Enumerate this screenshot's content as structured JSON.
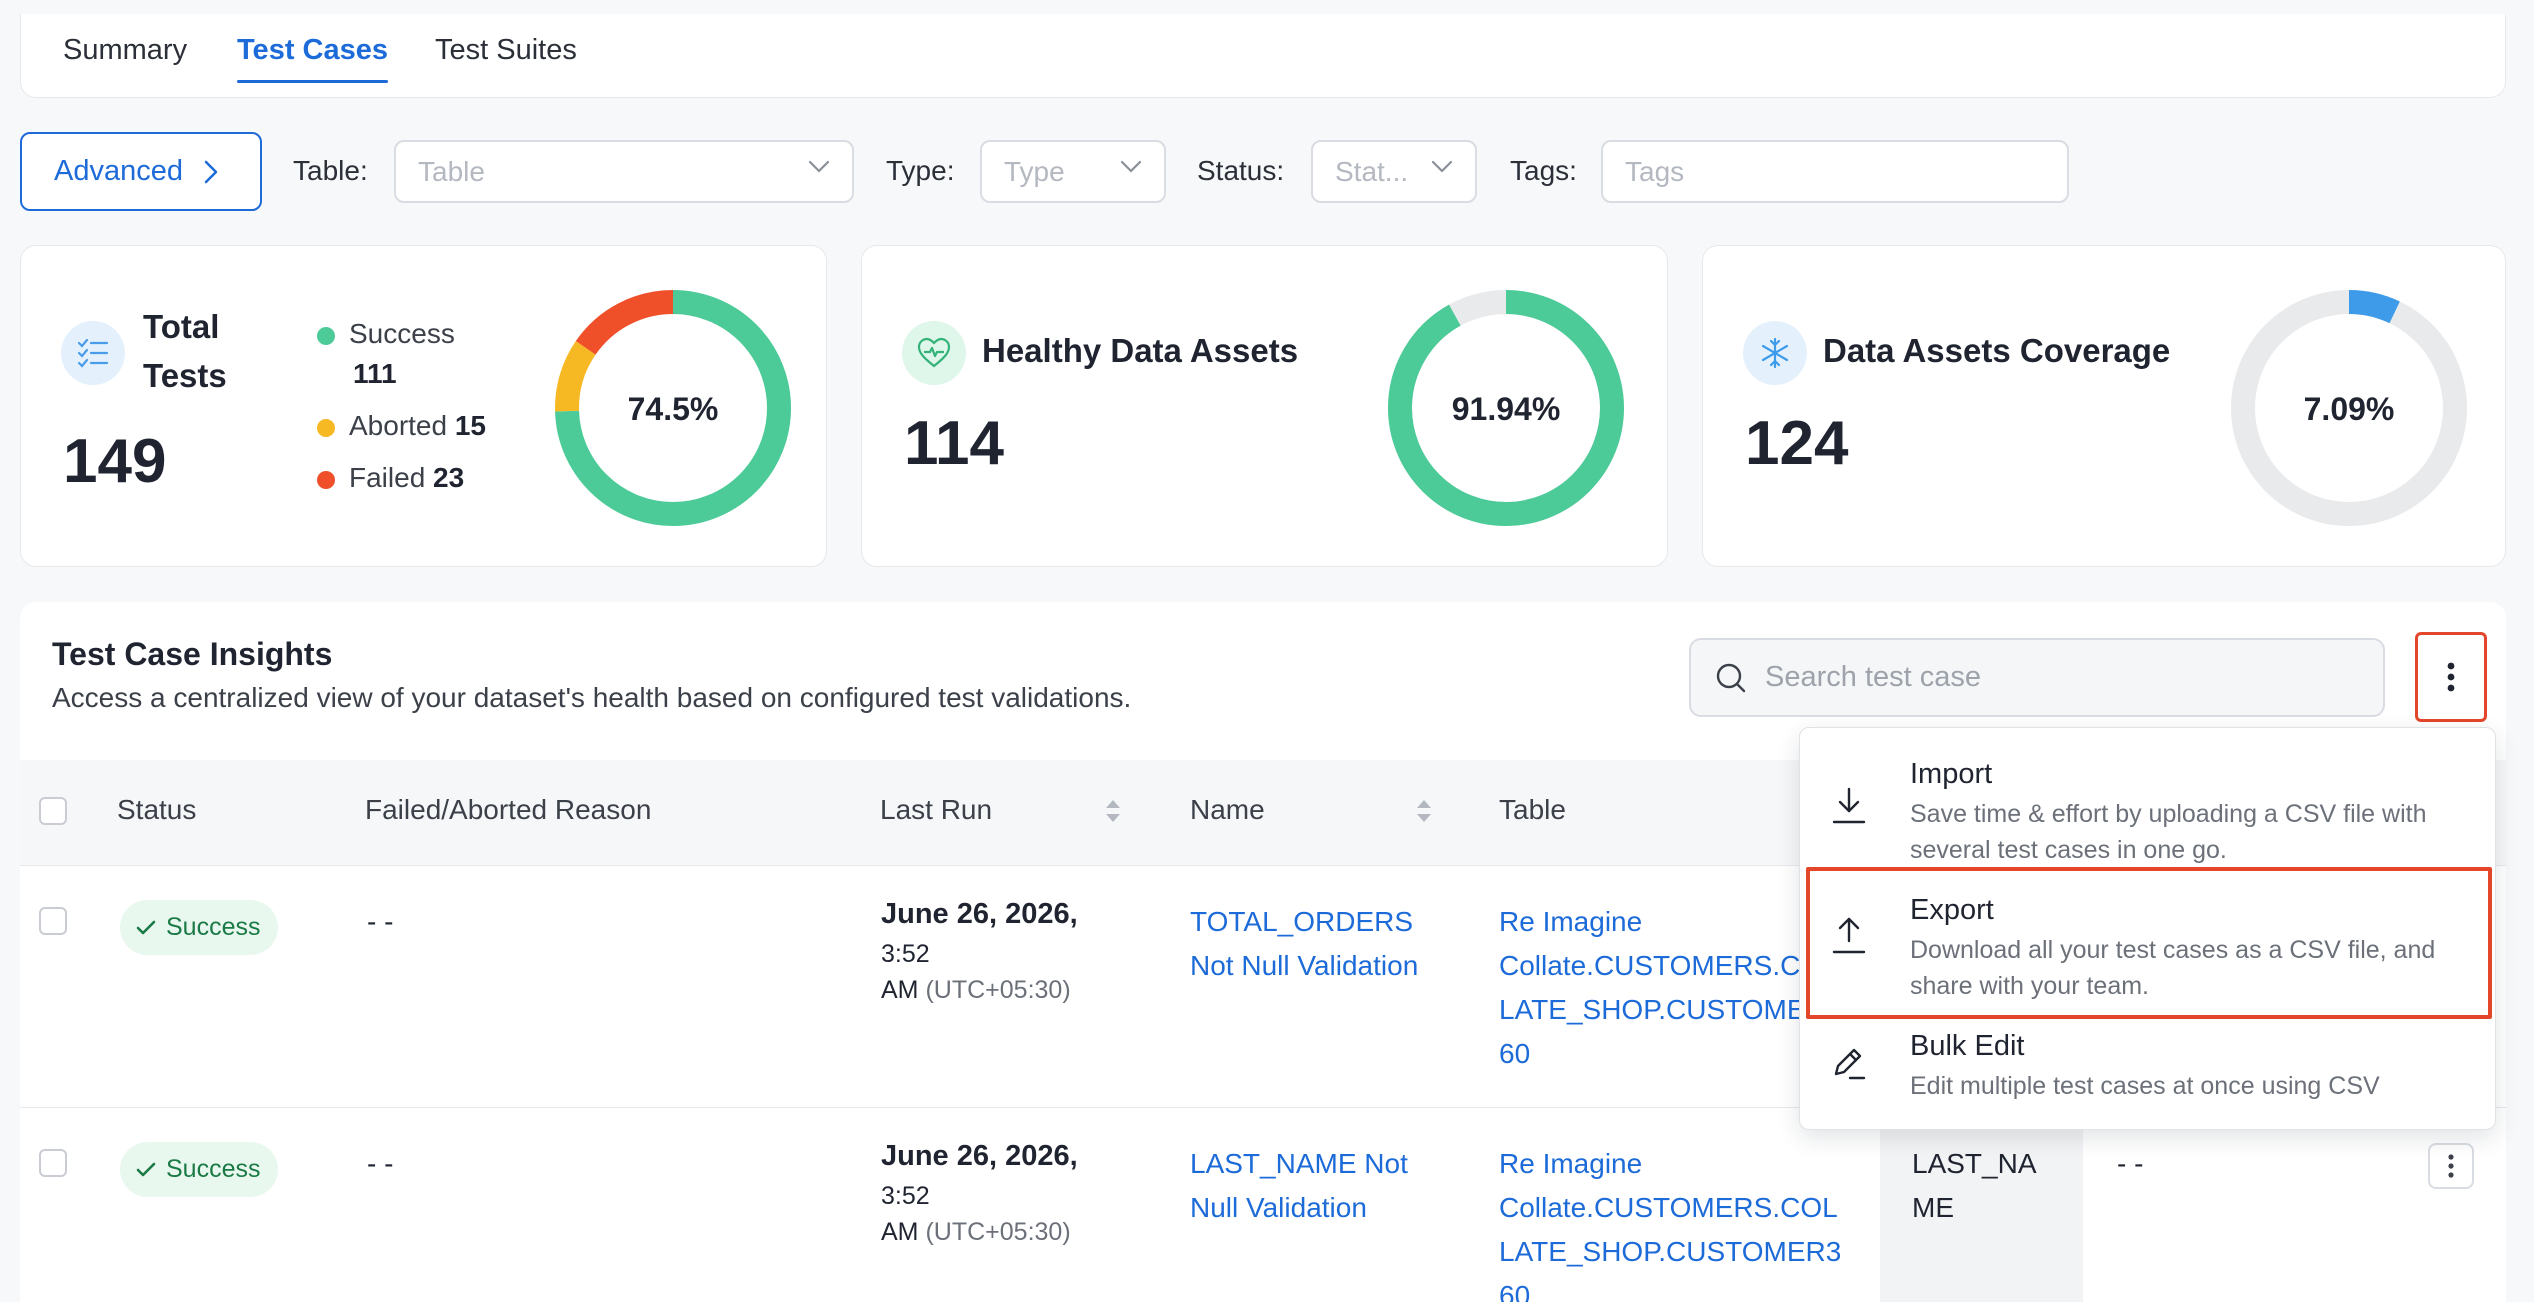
{
  "tabs": {
    "summary": "Summary",
    "test_cases": "Test Cases",
    "test_suites": "Test Suites"
  },
  "filters": {
    "advanced_label": "Advanced",
    "table_label": "Table",
    "table_placeholder": "Table",
    "type_label": "Type",
    "type_placeholder": "Type",
    "status_label": "Status",
    "status_placeholder": "Stat...",
    "tags_label": "Tags",
    "tags_placeholder": "Tags",
    "colon": ":"
  },
  "stats": {
    "total": {
      "title_line1": "Total",
      "title_line2": "Tests",
      "value": "149",
      "legend": [
        {
          "label": "Success",
          "count": "111",
          "color": "#4ccb98"
        },
        {
          "label": "Aborted",
          "count": "15",
          "color": "#f7b923"
        },
        {
          "label": "Failed",
          "count": "23",
          "color": "#ef4f29"
        }
      ],
      "donut_label": "74.5%",
      "fraction_success": 0.745,
      "fraction_aborted": 0.1007,
      "fraction_failed": 0.1544
    },
    "healthy": {
      "title": "Healthy Data Assets",
      "value": "114",
      "donut_label": "91.94%",
      "fraction": 0.9194,
      "color": "#4ccb98"
    },
    "coverage": {
      "title": "Data Assets Coverage",
      "value": "124",
      "donut_label": "7.09%",
      "fraction": 0.0709,
      "color": "#3d9bea"
    }
  },
  "insights": {
    "title": "Test Case Insights",
    "subtitle": "Access a centralized view of your dataset's health based on configured test validations.",
    "search_placeholder": "Search test case"
  },
  "table": {
    "headers": {
      "status": "Status",
      "reason": "Failed/Aborted Reason",
      "last_run": "Last Run",
      "name": "Name",
      "table": "Table"
    },
    "rows": [
      {
        "status": "Success",
        "reason": "- -",
        "date": "June 26, 2026,",
        "time": "3:52",
        "ampm": "AM",
        "tz": "(UTC+05:30)",
        "name_line1": "TOTAL_ORDERS",
        "name_line2": "Not Null Validation",
        "table_line1": "Re Imagine",
        "table_line2": "Collate.CUSTOMERS.C",
        "table_line3": "LATE_SHOP.CUSTOME",
        "table_line4": "60"
      },
      {
        "status": "Success",
        "reason": "- -",
        "date": "June 26, 2026,",
        "time": "3:52",
        "ampm": "AM",
        "tz": "(UTC+05:30)",
        "name_line1": "LAST_NAME Not",
        "name_line2": "Null Validation",
        "table_line1": "Re Imagine",
        "table_line2": "Collate.CUSTOMERS.COL",
        "table_line3": "LATE_SHOP.CUSTOMER3",
        "table_line4": "60",
        "column_line1": "LAST_NA",
        "column_line2": "ME",
        "extra": "- -"
      }
    ]
  },
  "menu": {
    "import_title": "Import",
    "import_desc": "Save time & effort by uploading a CSV file with several test cases in one go.",
    "export_title": "Export",
    "export_desc": "Download all your test cases as a CSV file, and share with your team.",
    "bulk_title": "Bulk Edit",
    "bulk_desc": "Edit multiple test cases at once using CSV"
  },
  "colors": {
    "accent": "#1d6bd8",
    "success": "#4ccb98",
    "aborted": "#f7b923",
    "failed": "#ef4f29",
    "track": "#e9eaec",
    "highlight": "#e4462a"
  }
}
